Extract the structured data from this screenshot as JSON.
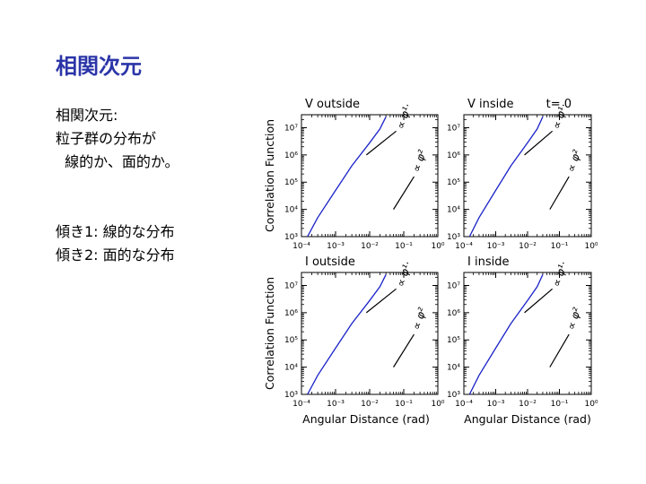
{
  "slide": {
    "title": "相関次元",
    "lines": [
      "相関次元:",
      "粒子群の分布が",
      "  線的か、面的か。",
      "",
      "",
      "傾き1: 線的な分布",
      "傾き2: 面的な分布"
    ]
  },
  "chart_data": {
    "type": "line",
    "xlabel": "Angular Distance (rad)",
    "ylabel": "Correlation Function",
    "xscale": "log",
    "yscale": "log",
    "xlim": [
      0.0001,
      1
    ],
    "ylim": [
      1000,
      30000000
    ],
    "x_tick_labels": [
      "10⁻⁴",
      "10⁻³",
      "10⁻²",
      "10⁻¹",
      "10⁰"
    ],
    "y_tick_labels": [
      "10³",
      "10⁴",
      "10⁵",
      "10⁶",
      "10⁷"
    ],
    "line_color": "#1a22c8",
    "reference_slopes": [
      {
        "label": "∝ φ¹·",
        "slope": 1
      },
      {
        "label": "∝ φ²",
        "slope": 2
      }
    ],
    "panels": [
      {
        "title": "V outside",
        "annotation": "",
        "series": [
          {
            "x": [
              0.00015,
              0.0003,
              0.001,
              0.003,
              0.01,
              0.02,
              0.03
            ],
            "y": [
              1000,
              5000,
              50000,
              400000,
              2800000,
              9000000,
              25000000
            ]
          }
        ]
      },
      {
        "title": "V inside",
        "annotation": "t= 0",
        "series": [
          {
            "x": [
              0.00015,
              0.0003,
              0.001,
              0.003,
              0.01,
              0.02,
              0.03
            ],
            "y": [
              1000,
              5000,
              50000,
              400000,
              2800000,
              9000000,
              25000000
            ]
          }
        ]
      },
      {
        "title": "I outside",
        "annotation": "",
        "series": [
          {
            "x": [
              0.00015,
              0.0003,
              0.001,
              0.003,
              0.01,
              0.02,
              0.03
            ],
            "y": [
              1000,
              5000,
              50000,
              400000,
              2800000,
              9000000,
              25000000
            ]
          }
        ]
      },
      {
        "title": "I inside",
        "annotation": "",
        "series": [
          {
            "x": [
              0.00015,
              0.0003,
              0.001,
              0.003,
              0.01,
              0.02,
              0.03
            ],
            "y": [
              1000,
              5000,
              50000,
              400000,
              2800000,
              9000000,
              25000000
            ]
          }
        ]
      }
    ]
  }
}
